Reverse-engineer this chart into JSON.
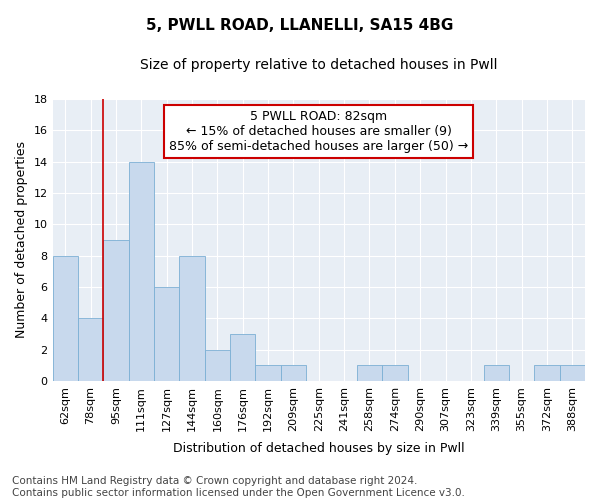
{
  "title1": "5, PWLL ROAD, LLANELLI, SA15 4BG",
  "title2": "Size of property relative to detached houses in Pwll",
  "xlabel": "Distribution of detached houses by size in Pwll",
  "ylabel": "Number of detached properties",
  "categories": [
    "62sqm",
    "78sqm",
    "95sqm",
    "111sqm",
    "127sqm",
    "144sqm",
    "160sqm",
    "176sqm",
    "192sqm",
    "209sqm",
    "225sqm",
    "241sqm",
    "258sqm",
    "274sqm",
    "290sqm",
    "307sqm",
    "323sqm",
    "339sqm",
    "355sqm",
    "372sqm",
    "388sqm"
  ],
  "values": [
    8,
    4,
    9,
    14,
    6,
    8,
    2,
    3,
    1,
    1,
    0,
    0,
    1,
    1,
    0,
    0,
    0,
    1,
    0,
    1,
    1
  ],
  "bar_color": "#c8d9ed",
  "bar_edge_color": "#7bafd4",
  "vline_x": 1.5,
  "vline_color": "#cc0000",
  "annotation_line1": "5 PWLL ROAD: 82sqm",
  "annotation_line2": "← 15% of detached houses are smaller (9)",
  "annotation_line3": "85% of semi-detached houses are larger (50) →",
  "annotation_box_facecolor": "#ffffff",
  "annotation_box_edgecolor": "#cc0000",
  "ylim": [
    0,
    18
  ],
  "yticks": [
    0,
    2,
    4,
    6,
    8,
    10,
    12,
    14,
    16,
    18
  ],
  "plot_bg_color": "#e8eef5",
  "grid_color": "#ffffff",
  "title1_fontsize": 11,
  "title2_fontsize": 10,
  "axis_label_fontsize": 9,
  "tick_fontsize": 8,
  "annotation_fontsize": 9,
  "footnote_fontsize": 7.5,
  "footnote": "Contains HM Land Registry data © Crown copyright and database right 2024.\nContains public sector information licensed under the Open Government Licence v3.0."
}
